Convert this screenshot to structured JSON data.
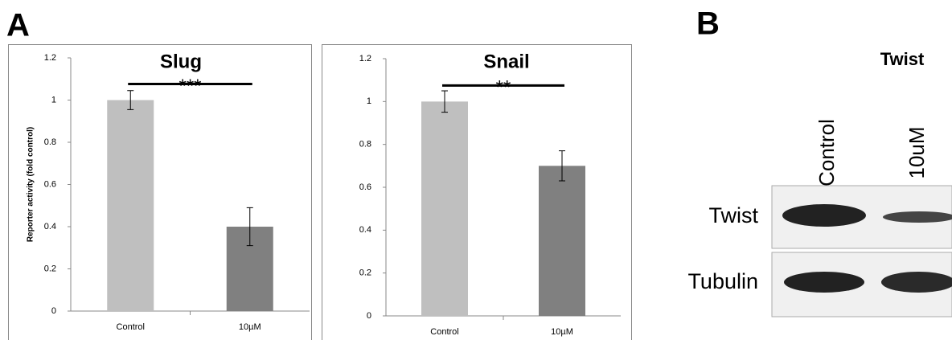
{
  "panels": {
    "a": "A",
    "b": "B"
  },
  "chart_data": [
    {
      "type": "bar",
      "title": "Slug",
      "y_label": "Reporter activity (fold control)",
      "categories": [
        "Control",
        "10µM"
      ],
      "values": [
        1.0,
        0.4
      ],
      "errors": [
        0.045,
        0.09
      ],
      "colors": [
        "#bfbfbf",
        "#808080"
      ],
      "significance": "***",
      "ylim": [
        0,
        1.2
      ],
      "yticks": [
        0,
        0.2,
        0.4,
        0.6,
        0.8,
        1,
        1.2
      ]
    },
    {
      "type": "bar",
      "title": "Snail",
      "categories": [
        "Control",
        "10µM"
      ],
      "values": [
        1.0,
        0.7
      ],
      "errors": [
        0.05,
        0.07
      ],
      "colors": [
        "#bfbfbf",
        "#808080"
      ],
      "significance": "**",
      "ylim": [
        0,
        1.2
      ],
      "yticks": [
        0,
        0.2,
        0.4,
        0.6,
        0.8,
        1,
        1.2
      ]
    }
  ],
  "blot": {
    "title": "Twist",
    "lanes": [
      "Control",
      "10uM"
    ],
    "rows": [
      "Twist",
      "Tubulin"
    ]
  }
}
